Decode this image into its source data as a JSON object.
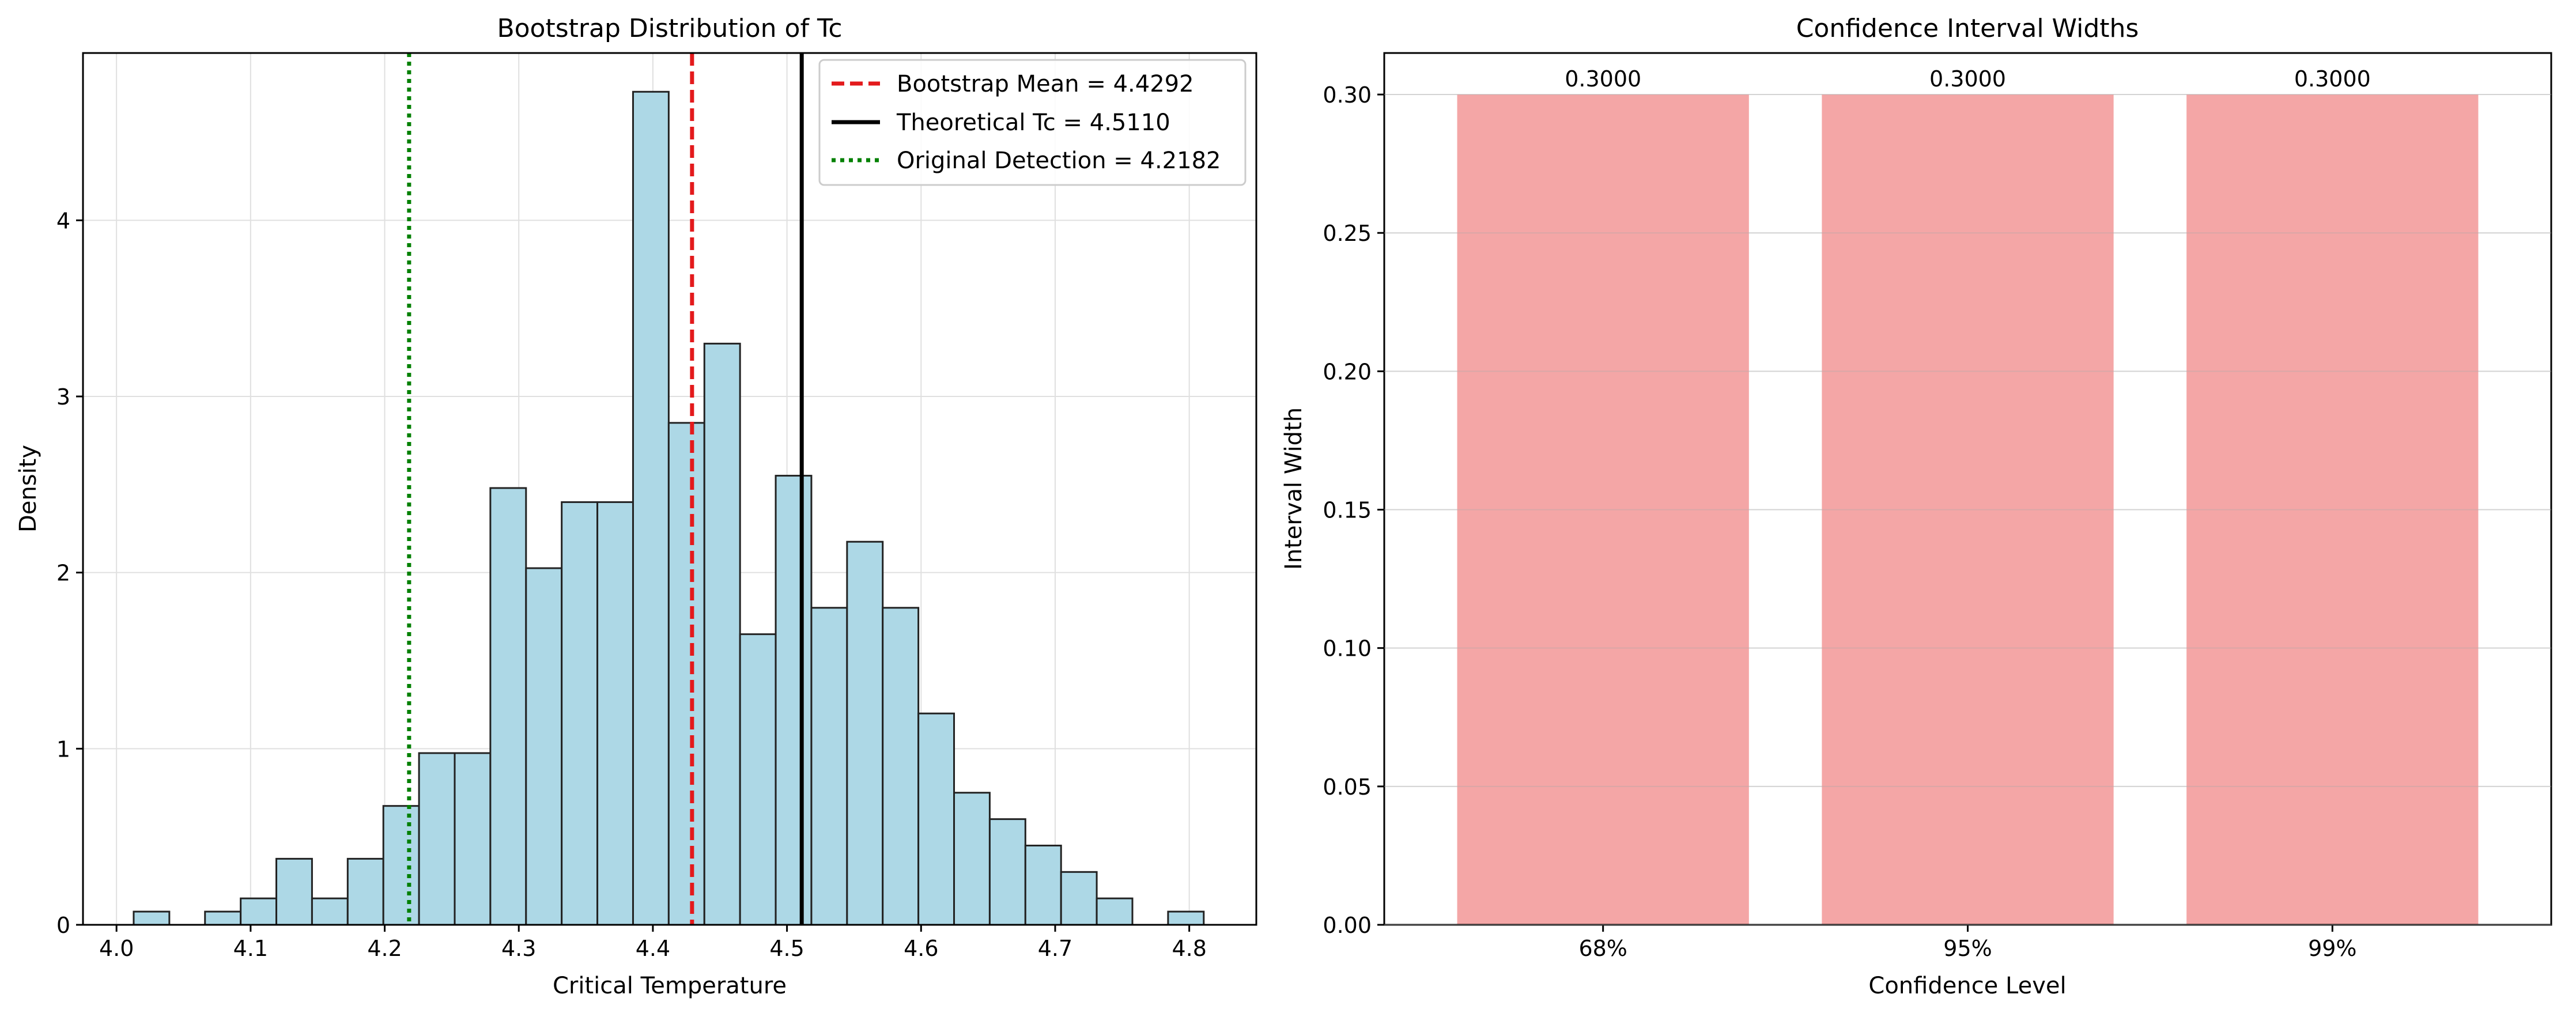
{
  "colors": {
    "hist_fill": "#add8e6",
    "hist_edge": "#222222",
    "mean_line": "#e31a1c",
    "theory_line": "#000000",
    "original_line": "#008000",
    "ci_bar": "#f08080",
    "grid": "#e0e0e0"
  },
  "chart_data": [
    {
      "type": "bar",
      "subtype": "histogram",
      "title": "Bootstrap Distribution of Tc",
      "xlabel": "Critical Temperature",
      "ylabel": "Density",
      "xlim": [
        3.975,
        4.85
      ],
      "ylim": [
        0,
        4.95
      ],
      "xticks": [
        4.0,
        4.1,
        4.2,
        4.3,
        4.4,
        4.5,
        4.6,
        4.7,
        4.8
      ],
      "xtick_labels": [
        "4.0",
        "4.1",
        "4.2",
        "4.3",
        "4.4",
        "4.5",
        "4.6",
        "4.7",
        "4.8"
      ],
      "yticks": [
        0,
        1,
        2,
        3,
        4
      ],
      "ytick_labels": [
        "0",
        "1",
        "2",
        "3",
        "4"
      ],
      "grid": true,
      "legend_position": "top-right",
      "bin_start": 4.0128,
      "bin_width": 0.0266,
      "densities": [
        0.075,
        0,
        0.075,
        0.15,
        0.375,
        0.15,
        0.375,
        0.675,
        0.975,
        0.975,
        2.48,
        2.025,
        2.4,
        2.4,
        4.73,
        2.85,
        3.3,
        1.65,
        2.55,
        1.8,
        2.175,
        1.8,
        1.2,
        0.75,
        0.6,
        0.45,
        0.3,
        0.15,
        0,
        0.075
      ],
      "vlines": [
        {
          "label": "Bootstrap Mean = 4.4292",
          "x": 4.4292,
          "style": "dashed",
          "color_key": "mean_line"
        },
        {
          "label": "Theoretical Tc = 4.5110",
          "x": 4.511,
          "style": "solid",
          "color_key": "theory_line"
        },
        {
          "label": "Original Detection = 4.2182",
          "x": 4.2182,
          "style": "dotted",
          "color_key": "original_line"
        }
      ]
    },
    {
      "type": "bar",
      "title": "Confidence Interval Widths",
      "xlabel": "Confidence Level",
      "ylabel": "Interval Width",
      "categories": [
        "68%",
        "95%",
        "99%"
      ],
      "values": [
        0.3,
        0.3,
        0.3
      ],
      "value_labels": [
        "0.3000",
        "0.3000",
        "0.3000"
      ],
      "ylim": [
        0,
        0.315
      ],
      "yticks": [
        0,
        0.05,
        0.1,
        0.15,
        0.2,
        0.25,
        0.3
      ],
      "ytick_labels": [
        "0.00",
        "0.05",
        "0.10",
        "0.15",
        "0.20",
        "0.25",
        "0.30"
      ],
      "grid": true
    }
  ]
}
